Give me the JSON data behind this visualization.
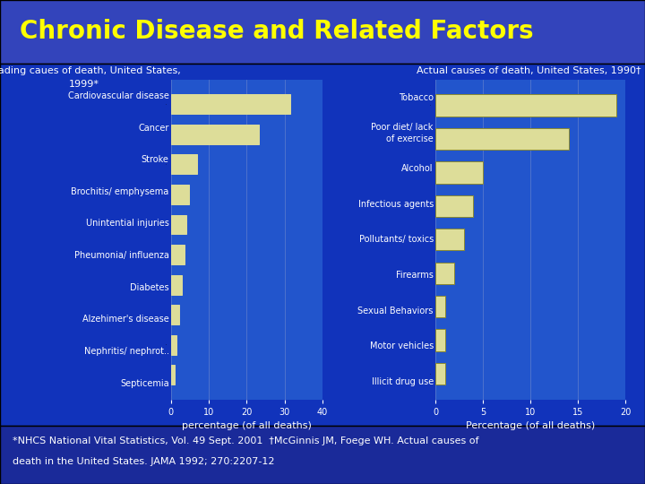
{
  "title": "Chronic Disease and Related Factors",
  "title_color": "#FFFF00",
  "title_fontsize": 20,
  "title_bg_color": "#3344AA",
  "main_bg_color": "#1133BB",
  "chart_bg_color": "#2255CC",
  "bar_color_light": "#DDDD99",
  "bar_color_dark": "#AAAA55",
  "bar_edge_color": "#888833",
  "left_chart_title_line1": "Leading caues of death, United States,",
  "left_chart_title_line2": "1999*",
  "left_categories": [
    "Cardiovascular disease",
    "Cancer",
    "Stroke",
    "Brochitis/ emphysema",
    "Unintential injuries",
    "Pheumonia/ influenza",
    "Diabetes",
    "Alzehimer's disease",
    "Nephritis/ nephrot..",
    "Septicemia"
  ],
  "left_values": [
    31.4,
    23.3,
    6.8,
    4.7,
    4.1,
    3.7,
    2.9,
    2.2,
    1.5,
    1.0
  ],
  "left_xlim": [
    0,
    40
  ],
  "left_xticks": [
    0,
    10,
    20,
    30,
    40
  ],
  "left_xlabel": "percentage (of all deaths)",
  "right_chart_title": "Actual causes of death, United States, 1990†",
  "right_categories": [
    "Tobacco",
    "Poor diet/ lack\nof exercise",
    "Alcohol",
    "Infectious agents",
    "Pollutants/ toxics",
    "Firearms",
    "Sexual Behaviors",
    "Motor vehicles",
    "Illicit drug use"
  ],
  "right_values": [
    19.0,
    14.0,
    5.0,
    4.0,
    3.0,
    2.0,
    1.0,
    1.0,
    1.0
  ],
  "right_xlim": [
    0,
    20
  ],
  "right_xticks": [
    0,
    5,
    10,
    15,
    20
  ],
  "right_xlabel": "Percentage (of all deaths)",
  "footnote_line1": "*NHCS National Vital Statistics, Vol. 49 Sept. 2001  †McGinnis JM, Foege WH. Actual causes of",
  "footnote_line2": "death in the United States. JAMA 1992; 270:2207-12",
  "footnote_color": "#FFFFFF",
  "footnote_fontsize": 8,
  "text_color": "#FFFFFF",
  "axis_label_fontsize": 8,
  "chart_title_fontsize": 8,
  "tick_label_fontsize": 7,
  "grid_color": "#5577CC",
  "bottom_footnote_bg": "#2233AA"
}
